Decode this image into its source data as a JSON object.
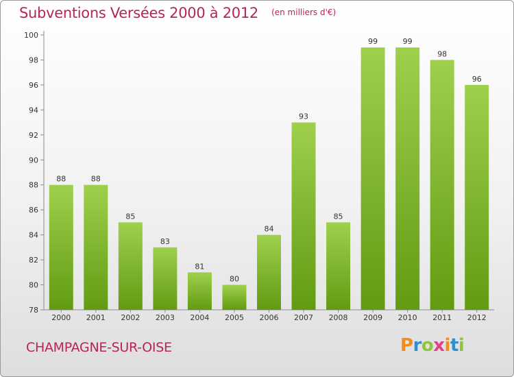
{
  "header": {
    "title": "Subventions Versées 2000 à 2012",
    "unit": "(en milliers d'€)"
  },
  "footer": {
    "commune": "CHAMPAGNE-SUR-OISE",
    "logo_text": "Proxiti"
  },
  "colors": {
    "title": "#b5245a",
    "bar_light": "#9fd04d",
    "bar_dark": "#629b12"
  },
  "chart_data": {
    "type": "bar",
    "categories": [
      "2000",
      "2001",
      "2002",
      "2003",
      "2004",
      "2005",
      "2006",
      "2007",
      "2008",
      "2009",
      "2010",
      "2011",
      "2012"
    ],
    "values": [
      88,
      88,
      85,
      83,
      81,
      80,
      84,
      93,
      85,
      99,
      99,
      98,
      96
    ],
    "ylim": [
      78,
      100
    ],
    "yticks": [
      78,
      80,
      82,
      84,
      86,
      88,
      90,
      92,
      94,
      96,
      98,
      100
    ],
    "grid": false
  }
}
